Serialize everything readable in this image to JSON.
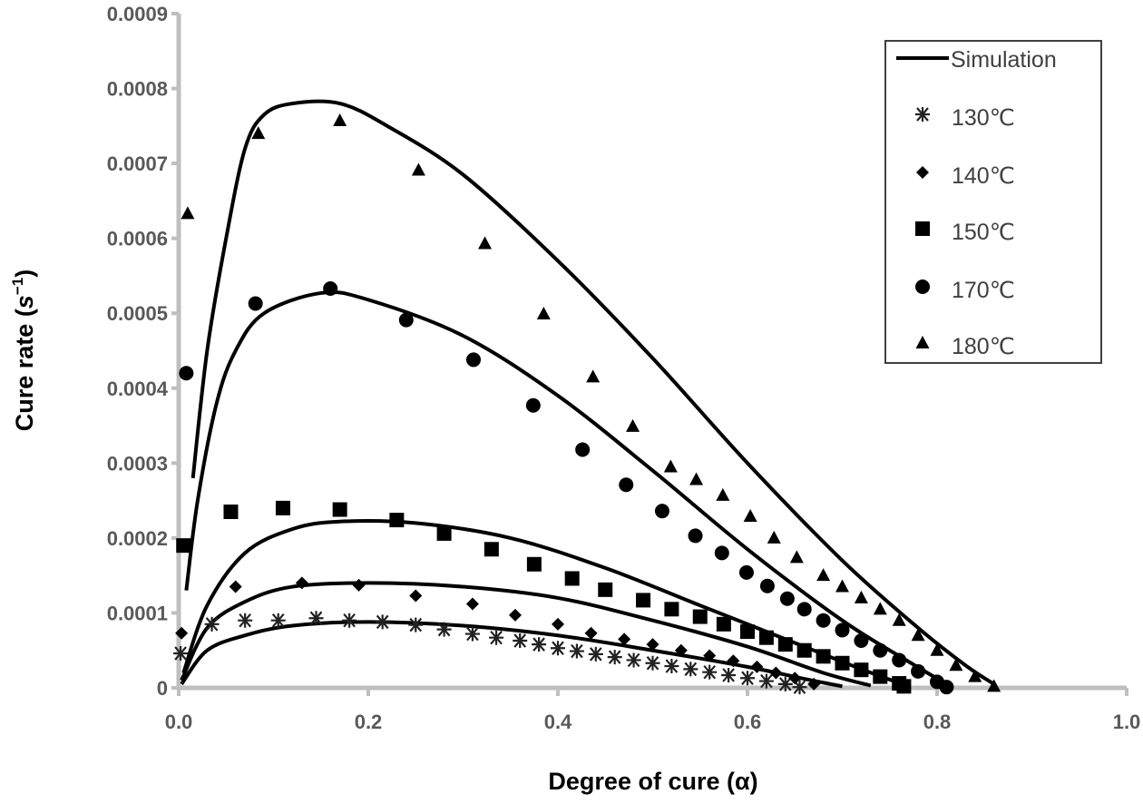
{
  "chart_data": {
    "type": "scatter",
    "title": "",
    "xlabel": "Degree of cure (α)",
    "ylabel_prefix": "Cure rate (",
    "ylabel_unit": "s",
    "ylabel_exp": "−1",
    "ylabel_suffix": ")",
    "xlim": [
      0,
      1
    ],
    "ylim": [
      0,
      0.0009
    ],
    "x_ticks": [
      "0.0",
      "0.2",
      "0.4",
      "0.6",
      "0.8",
      "1.0"
    ],
    "y_ticks": [
      "0",
      "0.0001",
      "0.0002",
      "0.0003",
      "0.0004",
      "0.0005",
      "0.0006",
      "0.0007",
      "0.0008",
      "0.0009"
    ],
    "grid": false,
    "legend_position": "top-right",
    "legend": [
      "Simulation",
      "130℃",
      "140℃",
      "150℃",
      "170℃",
      "180℃"
    ],
    "simulation": [
      {
        "name": "130℃",
        "points": [
          [
            0.003,
            5e-06
          ],
          [
            0.03,
            5e-05
          ],
          [
            0.07,
            7e-05
          ],
          [
            0.12,
            8.3e-05
          ],
          [
            0.2,
            8.8e-05
          ],
          [
            0.3,
            8.3e-05
          ],
          [
            0.4,
            7e-05
          ],
          [
            0.5,
            5e-05
          ],
          [
            0.6,
            2.8e-05
          ],
          [
            0.66,
            1.2e-05
          ],
          [
            0.7,
            2e-06
          ]
        ]
      },
      {
        "name": "140℃",
        "points": [
          [
            0.003,
            1e-05
          ],
          [
            0.03,
            8e-05
          ],
          [
            0.07,
            0.000115
          ],
          [
            0.12,
            0.000135
          ],
          [
            0.2,
            0.00014
          ],
          [
            0.3,
            0.000135
          ],
          [
            0.4,
            0.00012
          ],
          [
            0.5,
            9e-05
          ],
          [
            0.6,
            5.5e-05
          ],
          [
            0.68,
            2e-05
          ],
          [
            0.73,
            3e-06
          ]
        ]
      },
      {
        "name": "150℃",
        "points": [
          [
            0.005,
            2e-05
          ],
          [
            0.03,
            0.00011
          ],
          [
            0.07,
            0.00018
          ],
          [
            0.12,
            0.000212
          ],
          [
            0.17,
            0.000222
          ],
          [
            0.25,
            0.00022
          ],
          [
            0.35,
            0.0002
          ],
          [
            0.45,
            0.00016
          ],
          [
            0.55,
            0.00011
          ],
          [
            0.65,
            6e-05
          ],
          [
            0.72,
            2.5e-05
          ],
          [
            0.77,
            2e-06
          ]
        ]
      },
      {
        "name": "170℃",
        "points": [
          [
            0.008,
            0.00013
          ],
          [
            0.02,
            0.00025
          ],
          [
            0.04,
            0.00038
          ],
          [
            0.06,
            0.00045
          ],
          [
            0.09,
            0.0005
          ],
          [
            0.15,
            0.000527
          ],
          [
            0.2,
            0.000518
          ],
          [
            0.3,
            0.00047
          ],
          [
            0.4,
            0.00039
          ],
          [
            0.5,
            0.00029
          ],
          [
            0.6,
            0.000185
          ],
          [
            0.7,
            9e-05
          ],
          [
            0.77,
            3.5e-05
          ],
          [
            0.81,
            5e-06
          ]
        ]
      },
      {
        "name": "180℃",
        "points": [
          [
            0.015,
            0.00028
          ],
          [
            0.03,
            0.00045
          ],
          [
            0.05,
            0.0006
          ],
          [
            0.07,
            0.00072
          ],
          [
            0.09,
            0.000765
          ],
          [
            0.12,
            0.00078
          ],
          [
            0.17,
            0.00078
          ],
          [
            0.22,
            0.00075
          ],
          [
            0.3,
            0.000685
          ],
          [
            0.4,
            0.00057
          ],
          [
            0.5,
            0.00044
          ],
          [
            0.6,
            0.0003
          ],
          [
            0.7,
            0.00017
          ],
          [
            0.78,
            8e-05
          ],
          [
            0.83,
            3e-05
          ],
          [
            0.86,
            5e-06
          ]
        ]
      }
    ],
    "series": [
      {
        "name": "130℃",
        "marker": "asterisk",
        "points": [
          [
            0.002,
            4.6e-05
          ],
          [
            0.035,
            8.5e-05
          ],
          [
            0.07,
            9e-05
          ],
          [
            0.105,
            9e-05
          ],
          [
            0.145,
            9.3e-05
          ],
          [
            0.18,
            9e-05
          ],
          [
            0.215,
            8.8e-05
          ],
          [
            0.25,
            8.4e-05
          ],
          [
            0.28,
            7.8e-05
          ],
          [
            0.31,
            7.2e-05
          ],
          [
            0.335,
            6.7e-05
          ],
          [
            0.36,
            6.3e-05
          ],
          [
            0.38,
            5.8e-05
          ],
          [
            0.4,
            5.3e-05
          ],
          [
            0.42,
            4.9e-05
          ],
          [
            0.44,
            4.5e-05
          ],
          [
            0.46,
            4.1e-05
          ],
          [
            0.48,
            3.7e-05
          ],
          [
            0.5,
            3.3e-05
          ],
          [
            0.52,
            2.9e-05
          ],
          [
            0.54,
            2.5e-05
          ],
          [
            0.56,
            2.1e-05
          ],
          [
            0.58,
            1.7e-05
          ],
          [
            0.6,
            1.3e-05
          ],
          [
            0.62,
            9e-06
          ],
          [
            0.64,
            5e-06
          ],
          [
            0.655,
            1e-06
          ]
        ]
      },
      {
        "name": "140℃",
        "marker": "diamond",
        "points": [
          [
            0.003,
            7.3e-05
          ],
          [
            0.06,
            0.000135
          ],
          [
            0.13,
            0.00014
          ],
          [
            0.19,
            0.000137
          ],
          [
            0.25,
            0.000123
          ],
          [
            0.31,
            0.000112
          ],
          [
            0.355,
            9.7e-05
          ],
          [
            0.4,
            8.5e-05
          ],
          [
            0.435,
            7.3e-05
          ],
          [
            0.47,
            6.5e-05
          ],
          [
            0.5,
            5.8e-05
          ],
          [
            0.53,
            5e-05
          ],
          [
            0.56,
            4.3e-05
          ],
          [
            0.585,
            3.6e-05
          ],
          [
            0.61,
            2.8e-05
          ],
          [
            0.63,
            2e-05
          ],
          [
            0.65,
            1.3e-05
          ],
          [
            0.67,
            5e-06
          ]
        ]
      },
      {
        "name": "150℃",
        "marker": "square",
        "points": [
          [
            0.005,
            0.00019
          ],
          [
            0.055,
            0.000235
          ],
          [
            0.11,
            0.00024
          ],
          [
            0.17,
            0.000238
          ],
          [
            0.23,
            0.000224
          ],
          [
            0.28,
            0.000206
          ],
          [
            0.33,
            0.000185
          ],
          [
            0.375,
            0.000165
          ],
          [
            0.415,
            0.000146
          ],
          [
            0.45,
            0.000131
          ],
          [
            0.49,
            0.000117
          ],
          [
            0.52,
            0.000105
          ],
          [
            0.55,
            9.5e-05
          ],
          [
            0.575,
            8.5e-05
          ],
          [
            0.6,
            7.5e-05
          ],
          [
            0.62,
            6.7e-05
          ],
          [
            0.64,
            5.8e-05
          ],
          [
            0.66,
            5e-05
          ],
          [
            0.68,
            4.2e-05
          ],
          [
            0.7,
            3.3e-05
          ],
          [
            0.72,
            2.4e-05
          ],
          [
            0.74,
            1.5e-05
          ],
          [
            0.76,
            6e-06
          ],
          [
            0.765,
            2e-06
          ]
        ]
      },
      {
        "name": "170℃",
        "marker": "circle",
        "points": [
          [
            0.008,
            0.00042
          ],
          [
            0.081,
            0.000513
          ],
          [
            0.16,
            0.000533
          ],
          [
            0.24,
            0.000491
          ],
          [
            0.311,
            0.000438
          ],
          [
            0.374,
            0.000377
          ],
          [
            0.426,
            0.000318
          ],
          [
            0.472,
            0.000271
          ],
          [
            0.51,
            0.000236
          ],
          [
            0.545,
            0.000203
          ],
          [
            0.573,
            0.00018
          ],
          [
            0.599,
            0.000154
          ],
          [
            0.621,
            0.000136
          ],
          [
            0.642,
            0.000119
          ],
          [
            0.66,
            0.000105
          ],
          [
            0.68,
            9e-05
          ],
          [
            0.7,
            7.7e-05
          ],
          [
            0.72,
            6.3e-05
          ],
          [
            0.74,
            5e-05
          ],
          [
            0.76,
            3.7e-05
          ],
          [
            0.78,
            2.2e-05
          ],
          [
            0.8,
            8e-06
          ],
          [
            0.81,
            1e-06
          ]
        ]
      },
      {
        "name": "180℃",
        "marker": "triangle",
        "points": [
          [
            0.0095,
            0.000633
          ],
          [
            0.084,
            0.00074
          ],
          [
            0.17,
            0.000757
          ],
          [
            0.253,
            0.000691
          ],
          [
            0.323,
            0.000593
          ],
          [
            0.385,
            0.000499
          ],
          [
            0.437,
            0.000415
          ],
          [
            0.479,
            0.000349
          ],
          [
            0.519,
            0.000295
          ],
          [
            0.546,
            0.000278
          ],
          [
            0.574,
            0.000257
          ],
          [
            0.603,
            0.000229
          ],
          [
            0.628,
            0.0002
          ],
          [
            0.652,
            0.000174
          ],
          [
            0.68,
            0.00015
          ],
          [
            0.7,
            0.000135
          ],
          [
            0.72,
            0.00012
          ],
          [
            0.74,
            0.000105
          ],
          [
            0.76,
            9e-05
          ],
          [
            0.78,
            7e-05
          ],
          [
            0.8,
            5e-05
          ],
          [
            0.82,
            3e-05
          ],
          [
            0.84,
            1.5e-05
          ],
          [
            0.86,
            2e-06
          ]
        ]
      }
    ]
  }
}
